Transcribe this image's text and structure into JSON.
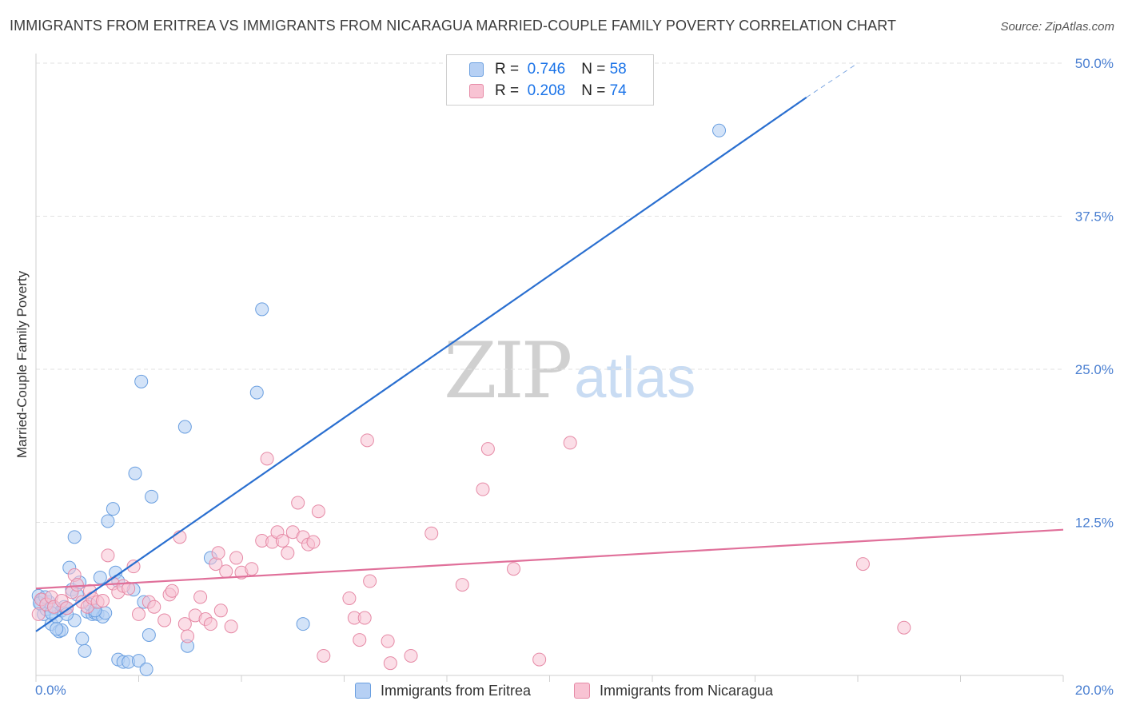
{
  "header": {
    "title": "IMMIGRANTS FROM ERITREA VS IMMIGRANTS FROM NICARAGUA MARRIED-COUPLE FAMILY POVERTY CORRELATION CHART",
    "source": "Source: ZipAtlas.com"
  },
  "watermark": {
    "zip": "ZIP",
    "atlas": "atlas"
  },
  "legend": {
    "r_label": "R =",
    "n_label": "N =",
    "rows": [
      {
        "r": "0.746",
        "n": "58"
      },
      {
        "r": "0.208",
        "n": "74"
      }
    ]
  },
  "colors": {
    "eritrea_fill": "#b6d0f4",
    "eritrea_stroke": "#6a9fe0",
    "eritrea_line": "#2a6fd0",
    "nicaragua_fill": "#f8c3d3",
    "nicaragua_stroke": "#e68aa6",
    "nicaragua_line": "#e0709a",
    "axis_label": "#4a7fd1",
    "grid": "#e2e2e2"
  },
  "chart_data": {
    "type": "scatter",
    "title": "IMMIGRANTS FROM ERITREA VS IMMIGRANTS FROM NICARAGUA MARRIED-COUPLE FAMILY POVERTY CORRELATION CHART",
    "xlabel": "",
    "ylabel": "Married-Couple Family Poverty",
    "xlim": [
      0,
      20
    ],
    "ylim": [
      0,
      50
    ],
    "x_tick_labels": [
      "0.0%",
      "20.0%"
    ],
    "y_ticks": [
      12.5,
      25.0,
      37.5,
      50.0
    ],
    "y_tick_labels": [
      "12.5%",
      "25.0%",
      "37.5%",
      "50.0%"
    ],
    "grid": true,
    "legend_position": "top-center",
    "series": [
      {
        "name": "Immigrants from Eritrea",
        "r": 0.746,
        "n": 58,
        "trend": {
          "x0": 0,
          "y0": 3.6,
          "x1": 15.0,
          "y1": 47.2,
          "dashed_to_x": 16.0,
          "dashed_to_y": 50.0
        },
        "points": [
          [
            0.05,
            6.5
          ],
          [
            0.1,
            5.8
          ],
          [
            0.12,
            6.2
          ],
          [
            0.15,
            5.0
          ],
          [
            0.2,
            5.4
          ],
          [
            0.25,
            6.0
          ],
          [
            0.3,
            4.2
          ],
          [
            0.35,
            5.5
          ],
          [
            0.4,
            4.8
          ],
          [
            0.45,
            3.6
          ],
          [
            0.5,
            5.3
          ],
          [
            0.55,
            5.6
          ],
          [
            0.6,
            5.5
          ],
          [
            0.65,
            8.8
          ],
          [
            0.7,
            7.0
          ],
          [
            0.75,
            4.5
          ],
          [
            0.8,
            6.6
          ],
          [
            0.85,
            7.6
          ],
          [
            0.9,
            3.0
          ],
          [
            0.95,
            2.0
          ],
          [
            1.0,
            5.2
          ],
          [
            1.05,
            5.8
          ],
          [
            1.1,
            5.0
          ],
          [
            1.15,
            5.1
          ],
          [
            1.2,
            5.0
          ],
          [
            1.25,
            8.0
          ],
          [
            1.3,
            4.8
          ],
          [
            1.35,
            5.1
          ],
          [
            1.4,
            12.6
          ],
          [
            1.5,
            13.6
          ],
          [
            1.55,
            8.4
          ],
          [
            1.6,
            7.7
          ],
          [
            1.6,
            1.3
          ],
          [
            1.7,
            1.1
          ],
          [
            1.8,
            1.1
          ],
          [
            1.9,
            7.0
          ],
          [
            1.93,
            16.5
          ],
          [
            2.0,
            1.2
          ],
          [
            2.05,
            24.0
          ],
          [
            2.1,
            6.0
          ],
          [
            2.15,
            0.5
          ],
          [
            2.2,
            3.3
          ],
          [
            2.25,
            14.6
          ],
          [
            2.9,
            20.3
          ],
          [
            2.95,
            2.4
          ],
          [
            3.4,
            9.6
          ],
          [
            4.3,
            23.1
          ],
          [
            4.4,
            29.9
          ],
          [
            5.2,
            4.2
          ],
          [
            13.3,
            44.5
          ],
          [
            0.07,
            5.9
          ],
          [
            0.18,
            6.4
          ],
          [
            0.3,
            5.1
          ],
          [
            0.5,
            3.7
          ],
          [
            0.6,
            5.0
          ],
          [
            0.75,
            11.3
          ],
          [
            1.15,
            5.3
          ],
          [
            0.4,
            3.8
          ]
        ]
      },
      {
        "name": "Immigrants from Nicaragua",
        "r": 0.208,
        "n": 74,
        "trend": {
          "x0": 0,
          "y0": 7.1,
          "x1": 20,
          "y1": 11.9
        },
        "points": [
          [
            0.05,
            5.0
          ],
          [
            0.1,
            6.2
          ],
          [
            0.2,
            5.8
          ],
          [
            0.3,
            6.4
          ],
          [
            0.35,
            5.6
          ],
          [
            0.5,
            6.1
          ],
          [
            0.6,
            5.5
          ],
          [
            0.7,
            6.8
          ],
          [
            0.75,
            8.2
          ],
          [
            0.8,
            7.4
          ],
          [
            0.9,
            6.0
          ],
          [
            1.0,
            5.6
          ],
          [
            1.05,
            6.9
          ],
          [
            1.1,
            6.3
          ],
          [
            1.2,
            6.0
          ],
          [
            1.3,
            6.1
          ],
          [
            1.4,
            9.8
          ],
          [
            1.5,
            7.5
          ],
          [
            1.6,
            6.8
          ],
          [
            1.7,
            7.3
          ],
          [
            1.8,
            7.1
          ],
          [
            1.9,
            8.9
          ],
          [
            2.0,
            5.0
          ],
          [
            2.2,
            6.0
          ],
          [
            2.3,
            5.6
          ],
          [
            2.5,
            4.5
          ],
          [
            2.6,
            6.6
          ],
          [
            2.65,
            6.9
          ],
          [
            2.8,
            11.3
          ],
          [
            2.9,
            4.2
          ],
          [
            2.95,
            3.2
          ],
          [
            3.1,
            4.9
          ],
          [
            3.2,
            6.4
          ],
          [
            3.3,
            4.6
          ],
          [
            3.4,
            4.2
          ],
          [
            3.5,
            9.1
          ],
          [
            3.55,
            10.0
          ],
          [
            3.6,
            5.3
          ],
          [
            3.7,
            8.5
          ],
          [
            3.8,
            4.0
          ],
          [
            3.9,
            9.6
          ],
          [
            4.0,
            8.4
          ],
          [
            4.2,
            8.7
          ],
          [
            4.4,
            11.0
          ],
          [
            4.5,
            17.7
          ],
          [
            4.6,
            10.9
          ],
          [
            4.7,
            11.7
          ],
          [
            4.8,
            11.0
          ],
          [
            4.9,
            10.0
          ],
          [
            5.0,
            11.7
          ],
          [
            5.1,
            14.1
          ],
          [
            5.2,
            11.3
          ],
          [
            5.3,
            10.7
          ],
          [
            5.4,
            10.9
          ],
          [
            5.5,
            13.4
          ],
          [
            5.6,
            1.6
          ],
          [
            6.1,
            6.3
          ],
          [
            6.2,
            4.7
          ],
          [
            6.3,
            2.9
          ],
          [
            6.4,
            4.7
          ],
          [
            6.45,
            19.2
          ],
          [
            6.5,
            7.7
          ],
          [
            6.85,
            2.8
          ],
          [
            6.9,
            1.0
          ],
          [
            7.3,
            1.6
          ],
          [
            7.7,
            11.6
          ],
          [
            8.3,
            7.4
          ],
          [
            8.7,
            15.2
          ],
          [
            8.8,
            18.5
          ],
          [
            9.3,
            8.7
          ],
          [
            9.8,
            1.3
          ],
          [
            10.4,
            19.0
          ],
          [
            16.1,
            9.1
          ],
          [
            16.9,
            3.9
          ]
        ]
      }
    ]
  }
}
